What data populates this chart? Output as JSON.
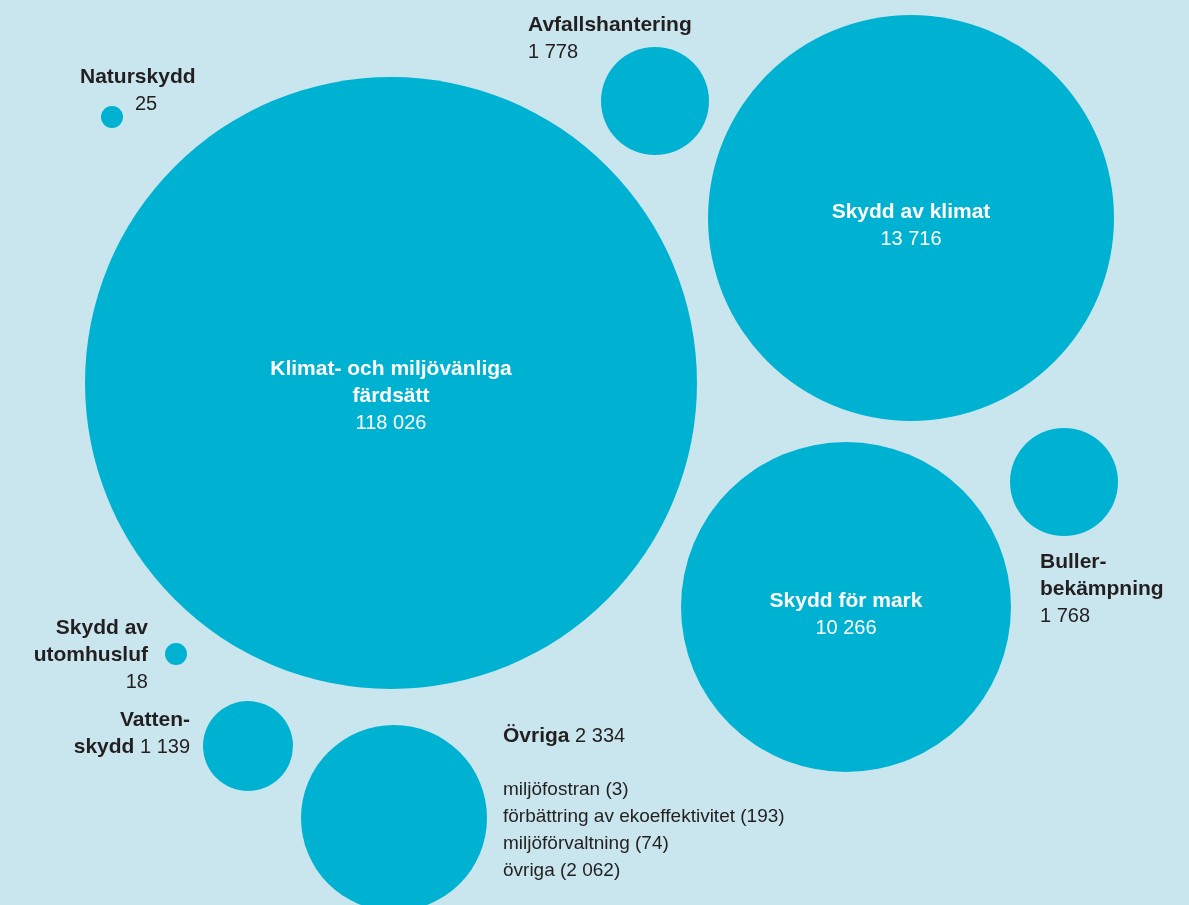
{
  "chart_data": {
    "type": "other",
    "categories": [
      "Klimat- och miljövänliga\nfärdsätt",
      "Skydd av klimat",
      "Skydd för mark",
      "Övriga",
      "Avfallshantering",
      "Buller-\nbekämpning",
      "Vatten-\nskydd",
      "Naturskydd",
      "Skydd av\nutomhusluf"
    ],
    "values": [
      118026,
      13716,
      10266,
      2334,
      1778,
      1768,
      1139,
      25,
      18
    ],
    "color": "#00b2d2",
    "data_labels": true,
    "annotations": [
      "miljöfostran (3)",
      "förbättring av ekoeffektivitet (193)",
      "miljöförvaltning (74)",
      "övriga (2 062)"
    ]
  }
}
